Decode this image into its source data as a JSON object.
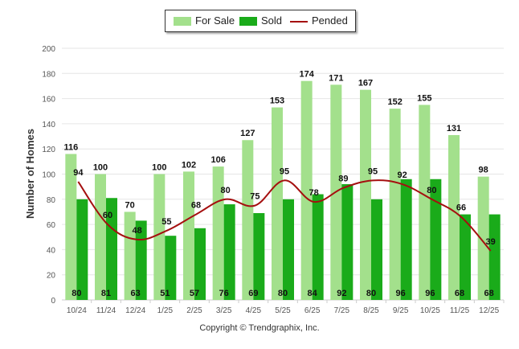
{
  "legend": {
    "for_sale": "For Sale",
    "sold": "Sold",
    "pended": "Pended"
  },
  "copyright": "Copyright © Trendgraphix, Inc.",
  "colors": {
    "for_sale": "#a3e08c",
    "sold": "#1aab1a",
    "pended": "#a50f0f",
    "grid": "#e6e6e6",
    "axis": "#cccccc"
  },
  "chart_data": {
    "type": "bar",
    "title": "",
    "xlabel": "",
    "ylabel": "Number of Homes",
    "ylim": [
      0,
      200
    ],
    "yticks": [
      "0",
      "20",
      "40",
      "60",
      "80",
      "100",
      "120",
      "140",
      "160",
      "180",
      "200"
    ],
    "categories": [
      "10/24",
      "11/24",
      "12/24",
      "1/25",
      "2/25",
      "3/25",
      "4/25",
      "5/25",
      "6/25",
      "7/25",
      "8/25",
      "9/25",
      "10/25",
      "11/25",
      "12/25"
    ],
    "series": [
      {
        "name": "For Sale",
        "type": "bar",
        "values": [
          116,
          100,
          70,
          100,
          102,
          106,
          127,
          153,
          174,
          171,
          167,
          152,
          155,
          131,
          98
        ]
      },
      {
        "name": "Sold",
        "type": "bar",
        "values": [
          80,
          81,
          63,
          51,
          57,
          76,
          69,
          80,
          84,
          92,
          80,
          96,
          96,
          68,
          68
        ]
      },
      {
        "name": "Pended",
        "type": "line",
        "values": [
          94,
          60,
          48,
          55,
          68,
          80,
          75,
          95,
          78,
          89,
          95,
          92,
          80,
          66,
          39
        ]
      }
    ]
  }
}
